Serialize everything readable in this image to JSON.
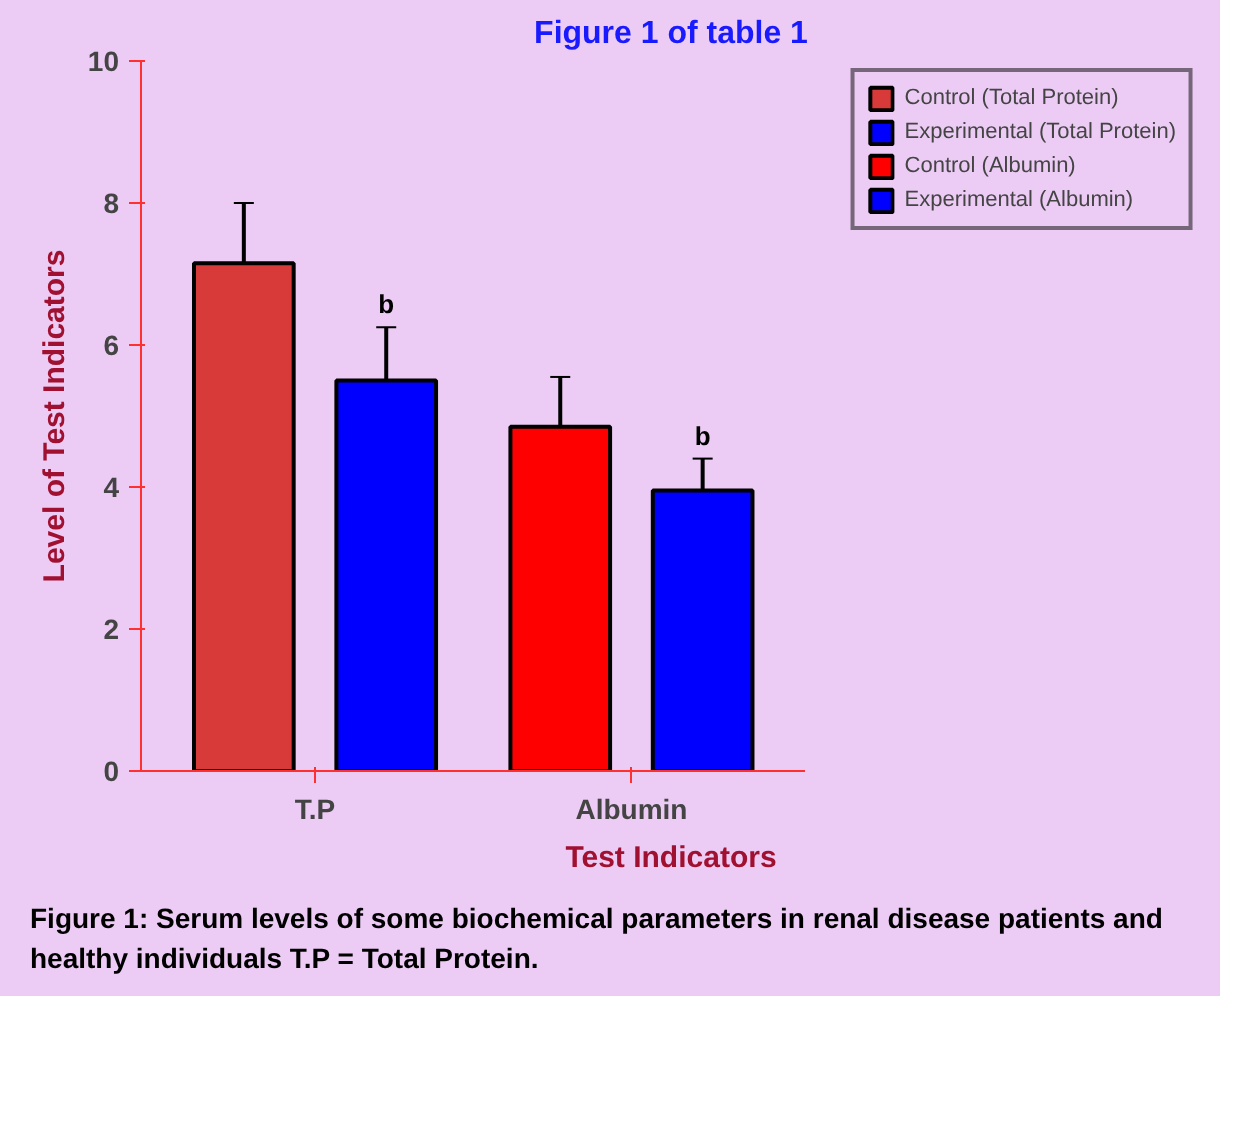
{
  "chart_data": {
    "type": "bar",
    "title": "Figure 1 of table 1",
    "xlabel": "Test Indicators",
    "ylabel": "Level of Test Indicators",
    "categories": [
      "T.P",
      "Albumin"
    ],
    "series": [
      {
        "name": "Control (Total Protein)",
        "color": "#d83a3a",
        "values": [
          7.15,
          null
        ],
        "errors": [
          0.85,
          null
        ]
      },
      {
        "name": "Experimental (Total Protein)",
        "color": "#0000ff",
        "values": [
          5.5,
          null
        ],
        "errors": [
          0.75,
          null
        ],
        "value_labels": [
          "b",
          null
        ]
      },
      {
        "name": "Control (Albumin)",
        "color": "#ff0000",
        "values": [
          null,
          4.85
        ],
        "errors": [
          null,
          0.7
        ]
      },
      {
        "name": "Experimental (Albumin)",
        "color": "#0000ff",
        "values": [
          null,
          3.95
        ],
        "errors": [
          null,
          0.45
        ],
        "value_labels": [
          null,
          "b"
        ]
      }
    ],
    "ylim": [
      0,
      10
    ],
    "yticks": [
      0,
      2,
      4,
      6,
      8,
      10
    ],
    "grid": false,
    "legend": "top right",
    "annotations": [
      "Figure 1: Serum levels of some biochemical parameters in renal disease patients and healthy individuals T.P = Total Protein."
    ]
  }
}
